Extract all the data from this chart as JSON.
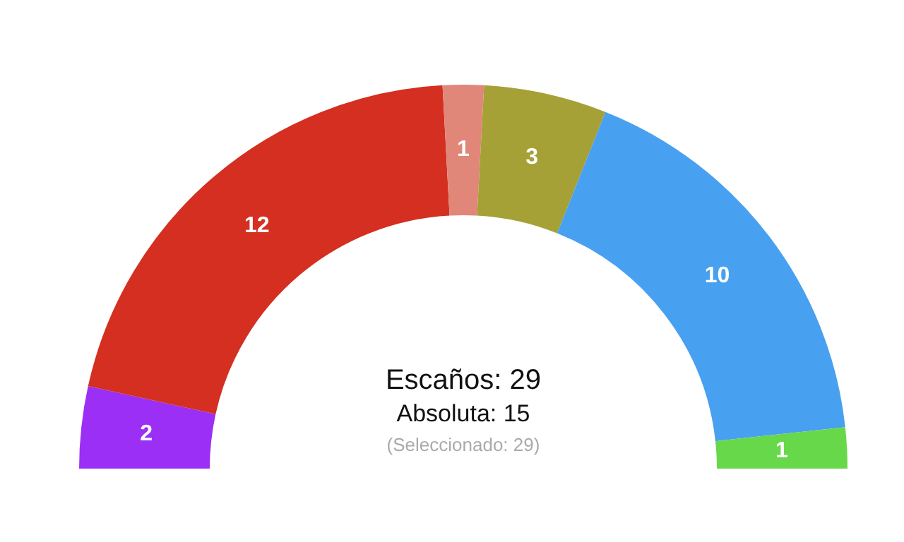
{
  "chart_data": {
    "type": "donut",
    "categories": [
      null,
      null,
      null,
      null,
      null,
      null
    ],
    "values": [
      2,
      12,
      1,
      3,
      10,
      1
    ],
    "colors": [
      "#9b2ff5",
      "#d42f20",
      "#e0877a",
      "#a5a137",
      "#48a0f0",
      "#66d84a"
    ],
    "data_labels": true,
    "annotations": [
      "Escaños: 29",
      "Absoluta: 15",
      "(Seleccionado: 29)"
    ]
  }
}
